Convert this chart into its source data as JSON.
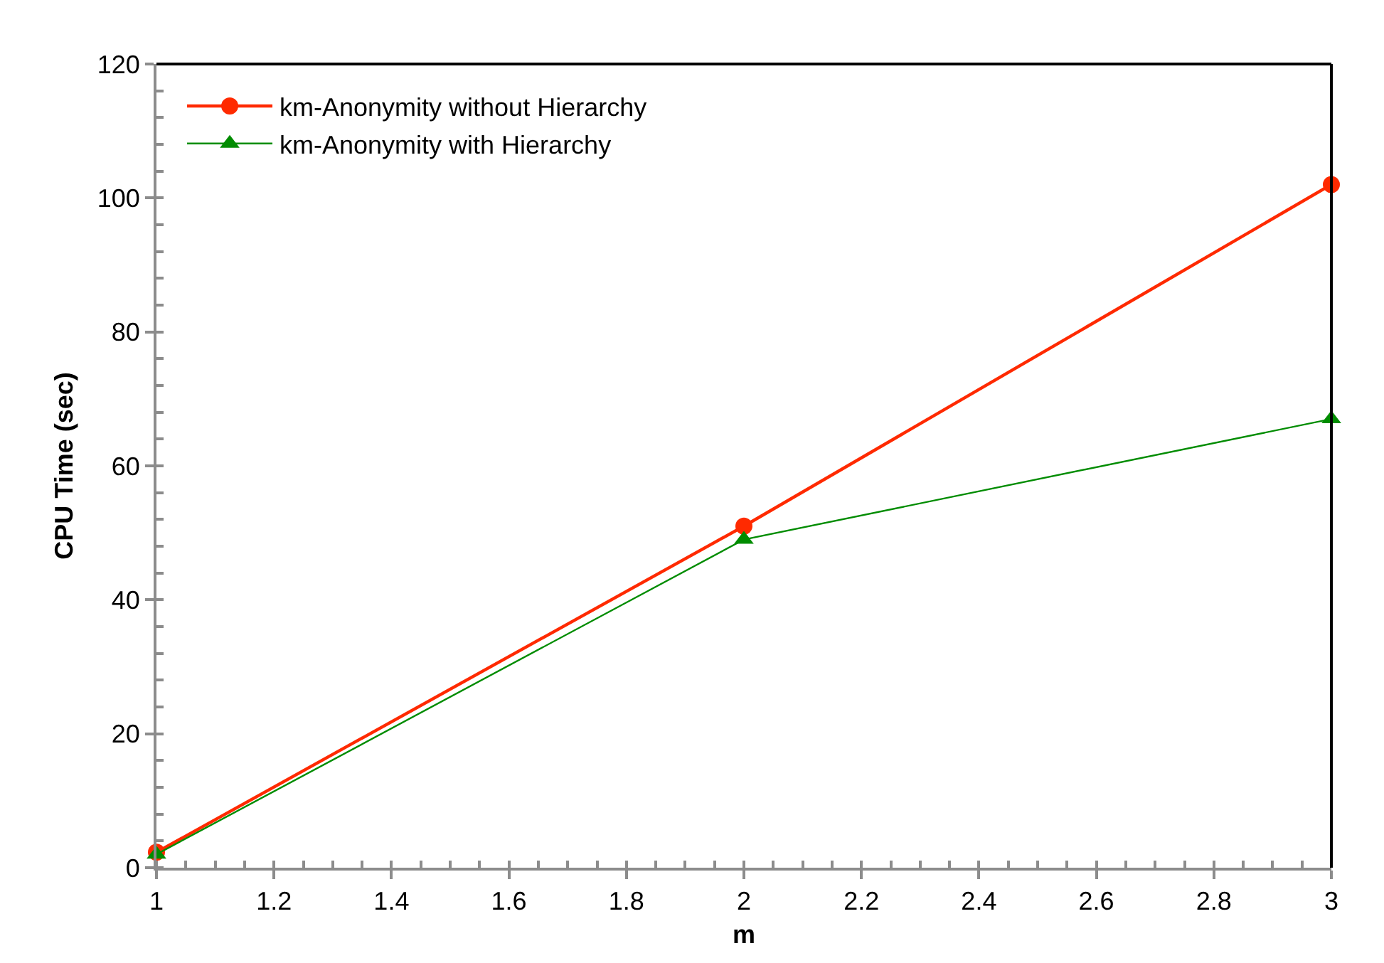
{
  "chart_data": {
    "type": "line",
    "xlabel": "m",
    "ylabel": "CPU Time (sec)",
    "x": [
      1,
      2,
      3
    ],
    "series": [
      {
        "name": "km-Anonymity without Hierarchy",
        "color": "#ff2a00",
        "values": [
          2.3,
          51,
          102
        ],
        "marker": "circle"
      },
      {
        "name": "km-Anonymity with Hierarchy",
        "color": "#008c00",
        "values": [
          2,
          49,
          67
        ],
        "marker": "triangle"
      }
    ],
    "xlim": [
      1,
      3
    ],
    "xticks": [
      1,
      1.2,
      1.4,
      1.6,
      1.8,
      2,
      2.2,
      2.4,
      2.6,
      2.8,
      3
    ],
    "ylim": [
      0,
      120
    ],
    "yticks": [
      0,
      20,
      40,
      60,
      80,
      100,
      120
    ],
    "legend": "top left",
    "line_style": "solid"
  }
}
